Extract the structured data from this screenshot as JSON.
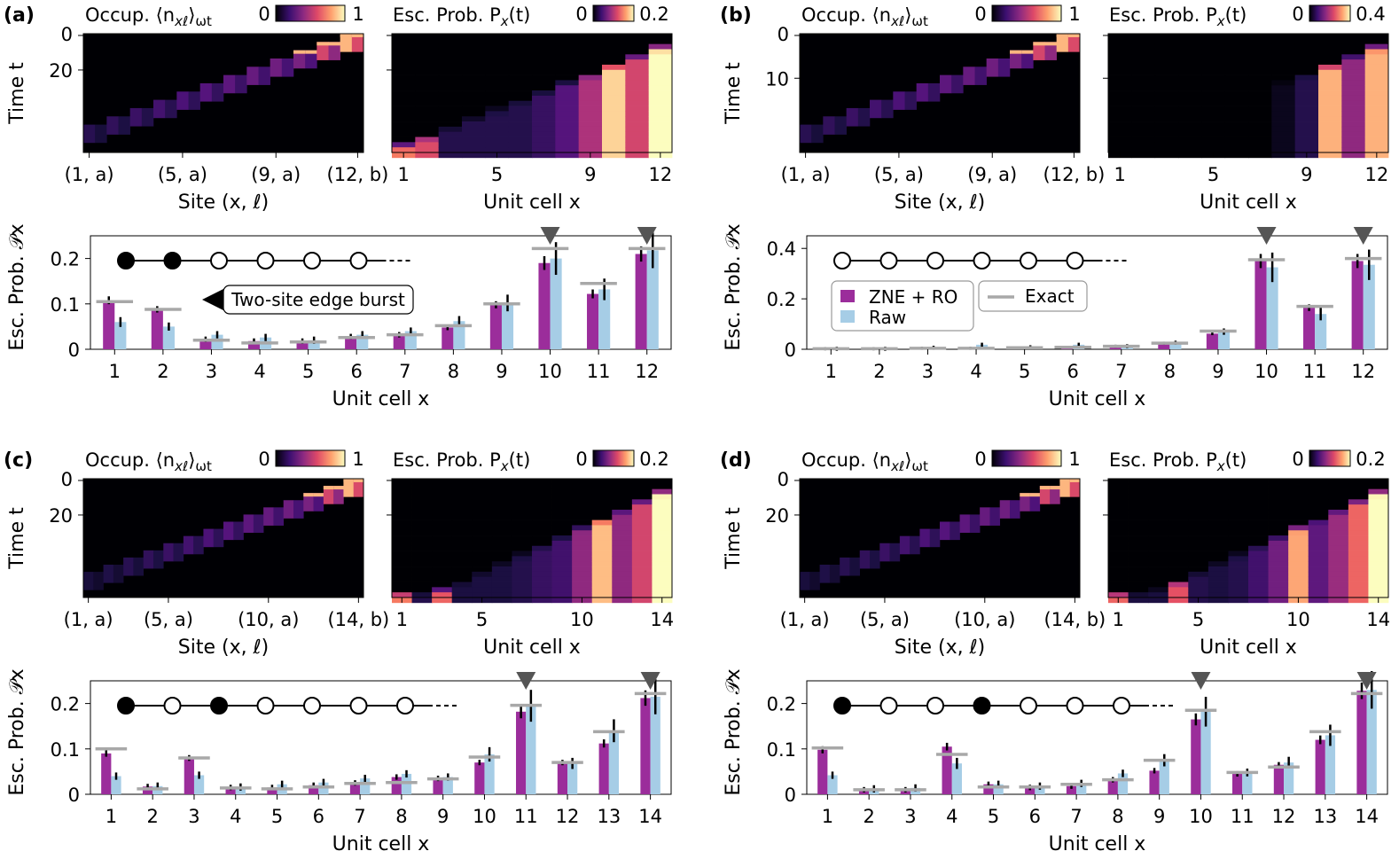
{
  "panels": [
    {
      "id": "a",
      "letter": "(a)",
      "N": 12,
      "occ": {
        "title": "Occup. ⟨n",
        "sub": "xℓ",
        "tail": "⟩",
        "tail_sub": "ωt",
        "cmin": "0",
        "cmax": "1",
        "xticks": [
          "(1, a)",
          "(5, a)",
          "(9, a)",
          "(12, b)"
        ],
        "xlabel": "Site (x, ℓ)",
        "ylabel": "Time t",
        "yticks": [
          "0",
          "20"
        ],
        "tmax": 36
      },
      "esc": {
        "title": "Esc. Prob. P",
        "sub": "x",
        "tail": "(t)",
        "cmin": "0",
        "cmax": "0.2",
        "xticks": [
          "1",
          "5",
          "9",
          "12"
        ],
        "xlabel": "Unit cell x",
        "final": [
          0.3,
          0.25,
          0.06,
          0.06,
          0.06,
          0.06,
          0.08,
          0.11,
          0.2,
          0.38,
          0.24,
          0.42
        ]
      },
      "bar": {
        "ylabel": "Esc. Prob. 𝒫x",
        "xlabel": "Unit cell x",
        "yticks": [
          "0",
          "0.1",
          "0.2"
        ],
        "ymax": 0.25,
        "zne": [
          0.108,
          0.088,
          0.022,
          0.018,
          0.018,
          0.028,
          0.032,
          0.048,
          0.098,
          0.19,
          0.122,
          0.21
        ],
        "raw": [
          0.06,
          0.05,
          0.032,
          0.026,
          0.02,
          0.032,
          0.04,
          0.062,
          0.102,
          0.2,
          0.132,
          0.218
        ],
        "exact": [
          0.105,
          0.088,
          0.02,
          0.014,
          0.016,
          0.026,
          0.032,
          0.052,
          0.1,
          0.222,
          0.145,
          0.222
        ],
        "chain": [
          1,
          1,
          0,
          0,
          0,
          0
        ],
        "markers": [
          10,
          12
        ],
        "annotation": "Two-site edge burst"
      }
    },
    {
      "id": "b",
      "letter": "(b)",
      "N": 12,
      "occ": {
        "title": "Occup. ⟨n",
        "sub": "xℓ",
        "tail": "⟩",
        "tail_sub": "ωt",
        "cmin": "0",
        "cmax": "1",
        "xticks": [
          "(1, a)",
          "(5, a)",
          "(9, a)",
          "(12, b)"
        ],
        "xlabel": "Site (x, ℓ)",
        "ylabel": "Time t",
        "yticks": [
          "0",
          "10"
        ],
        "tmax": 16
      },
      "esc": {
        "title": "Esc. Prob. P",
        "sub": "x",
        "tail": "(t)",
        "cmin": "0",
        "cmax": "0.4",
        "xticks": [
          "1",
          "5",
          "9",
          "12"
        ],
        "xlabel": "Unit cell x",
        "final": [
          0.0,
          0.0,
          0.0,
          0.0,
          0.0,
          0.0,
          0.0,
          0.02,
          0.06,
          0.35,
          0.17,
          0.35
        ]
      },
      "bar": {
        "ylabel": "Esc. Prob. 𝒫x",
        "xlabel": "Unit cell x",
        "yticks": [
          "0",
          "0.2",
          "0.4"
        ],
        "ymax": 0.45,
        "zne": [
          0.002,
          0.002,
          0.004,
          0.004,
          0.006,
          0.008,
          0.012,
          0.024,
          0.062,
          0.35,
          0.165,
          0.35
        ],
        "raw": [
          0.002,
          0.002,
          0.006,
          0.018,
          0.008,
          0.018,
          0.012,
          0.026,
          0.07,
          0.325,
          0.14,
          0.335
        ],
        "exact": [
          0.002,
          0.002,
          0.004,
          0.004,
          0.006,
          0.008,
          0.012,
          0.024,
          0.072,
          0.355,
          0.17,
          0.36
        ],
        "chain": [
          0,
          0,
          0,
          0,
          0,
          0
        ],
        "markers": [
          10,
          12
        ],
        "legend": {
          "zne": "ZNE + RO",
          "raw": "Raw",
          "exact": "Exact"
        }
      }
    },
    {
      "id": "c",
      "letter": "(c)",
      "N": 14,
      "occ": {
        "title": "Occup. ⟨n",
        "sub": "xℓ",
        "tail": "⟩",
        "tail_sub": "ωt",
        "cmin": "0",
        "cmax": "1",
        "xticks": [
          "(1, a)",
          "(5, a)",
          "(10, a)",
          "(14, b)"
        ],
        "xlabel": "Site (x, ℓ)",
        "ylabel": "Time t",
        "yticks": [
          "0",
          "20"
        ],
        "tmax": 38
      },
      "esc": {
        "title": "Esc. Prob. P",
        "sub": "x",
        "tail": "(t)",
        "cmin": "0",
        "cmax": "0.2",
        "xticks": [
          "1",
          "5",
          "10",
          "14"
        ],
        "xlabel": "Unit cell x",
        "final": [
          0.3,
          0.06,
          0.28,
          0.05,
          0.05,
          0.05,
          0.06,
          0.08,
          0.09,
          0.17,
          0.36,
          0.17,
          0.24,
          0.44
        ]
      },
      "bar": {
        "ylabel": "Esc. Prob. 𝒫x",
        "xlabel": "Unit cell x",
        "yticks": [
          "0",
          "0.1",
          "0.2"
        ],
        "ymax": 0.25,
        "zne": [
          0.09,
          0.017,
          0.08,
          0.015,
          0.015,
          0.02,
          0.025,
          0.038,
          0.035,
          0.07,
          0.182,
          0.07,
          0.112,
          0.212
        ],
        "raw": [
          0.04,
          0.018,
          0.042,
          0.016,
          0.022,
          0.026,
          0.035,
          0.045,
          0.038,
          0.088,
          0.195,
          0.068,
          0.14,
          0.215
        ],
        "exact": [
          0.1,
          0.012,
          0.08,
          0.014,
          0.012,
          0.016,
          0.024,
          0.026,
          0.034,
          0.082,
          0.196,
          0.07,
          0.138,
          0.222
        ],
        "chain": [
          1,
          0,
          1,
          0,
          0,
          0,
          0
        ],
        "markers": [
          11,
          14
        ]
      }
    },
    {
      "id": "d",
      "letter": "(d)",
      "N": 14,
      "occ": {
        "title": "Occup. ⟨n",
        "sub": "xℓ",
        "tail": "⟩",
        "tail_sub": "ωt",
        "cmin": "0",
        "cmax": "1",
        "xticks": [
          "(1, a)",
          "(5, a)",
          "(10, a)",
          "(14, b)"
        ],
        "xlabel": "Site (x, ℓ)",
        "ylabel": "Time t",
        "yticks": [
          "0",
          "20"
        ],
        "tmax": 38
      },
      "esc": {
        "title": "Esc. Prob. P",
        "sub": "x",
        "tail": "(t)",
        "cmin": "0",
        "cmax": "0.2",
        "xticks": [
          "1",
          "5",
          "10",
          "14"
        ],
        "xlabel": "Unit cell x",
        "final": [
          0.28,
          0.05,
          0.05,
          0.26,
          0.06,
          0.05,
          0.06,
          0.09,
          0.14,
          0.34,
          0.12,
          0.18,
          0.28,
          0.44
        ]
      },
      "bar": {
        "ylabel": "Esc. Prob. 𝒫x",
        "xlabel": "Unit cell x",
        "yticks": [
          "0",
          "0.1",
          "0.2"
        ],
        "ymax": 0.25,
        "zne": [
          0.098,
          0.01,
          0.01,
          0.105,
          0.022,
          0.015,
          0.018,
          0.032,
          0.052,
          0.165,
          0.045,
          0.065,
          0.12,
          0.228
        ],
        "raw": [
          0.042,
          0.012,
          0.014,
          0.068,
          0.022,
          0.018,
          0.024,
          0.046,
          0.075,
          0.182,
          0.048,
          0.07,
          0.13,
          0.23
        ],
        "exact": [
          0.102,
          0.01,
          0.01,
          0.088,
          0.016,
          0.016,
          0.022,
          0.032,
          0.075,
          0.185,
          0.048,
          0.06,
          0.138,
          0.222
        ],
        "chain": [
          1,
          0,
          0,
          1,
          0,
          0,
          0
        ],
        "markers": [
          10,
          14
        ]
      }
    }
  ],
  "colors": {
    "zne": "#9b2d9b",
    "raw": "#a6cde6",
    "exact": "#a8a8a8",
    "marker": "#555555"
  }
}
